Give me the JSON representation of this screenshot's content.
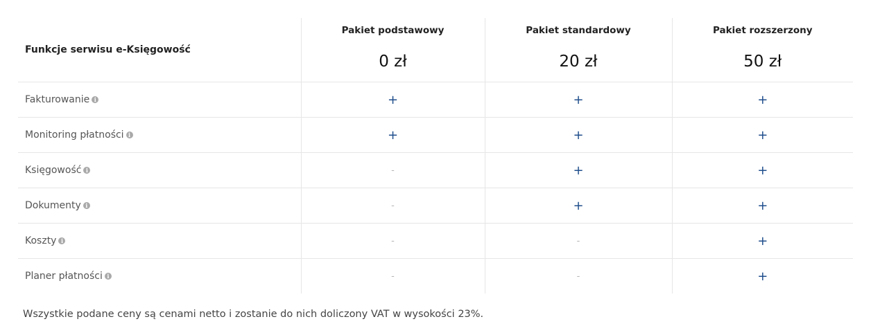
{
  "table": {
    "header_label": "Funkcje serwisu e-Księgowość",
    "packages": [
      {
        "name": "Pakiet podstawowy",
        "price": "0 zł"
      },
      {
        "name": "Pakiet standardowy",
        "price": "20 zł"
      },
      {
        "name": "Pakiet rozszerzony",
        "price": "50 zł"
      }
    ],
    "rows": [
      {
        "feature": "Fakturowanie",
        "values": [
          "+",
          "+",
          "+"
        ]
      },
      {
        "feature": "Monitoring płatności",
        "values": [
          "+",
          "+",
          "+"
        ]
      },
      {
        "feature": "Księgowość",
        "values": [
          "-",
          "+",
          "+"
        ]
      },
      {
        "feature": "Dokumenty",
        "values": [
          "-",
          "+",
          "+"
        ]
      },
      {
        "feature": "Koszty",
        "values": [
          "-",
          "-",
          "+"
        ]
      },
      {
        "feature": "Planer płatności",
        "values": [
          "-",
          "-",
          "+"
        ]
      }
    ]
  },
  "icons": {
    "info": "info-icon",
    "info_glyph": "i"
  },
  "colors": {
    "plus": "#1f4e8c",
    "dash": "#b5b5b5",
    "border": "#e6e6e6",
    "info_icon": "#a9a9a9"
  },
  "footnote": "Wszystkie podane ceny są cenami netto i zostanie do nich doliczony VAT w wysokości 23%."
}
